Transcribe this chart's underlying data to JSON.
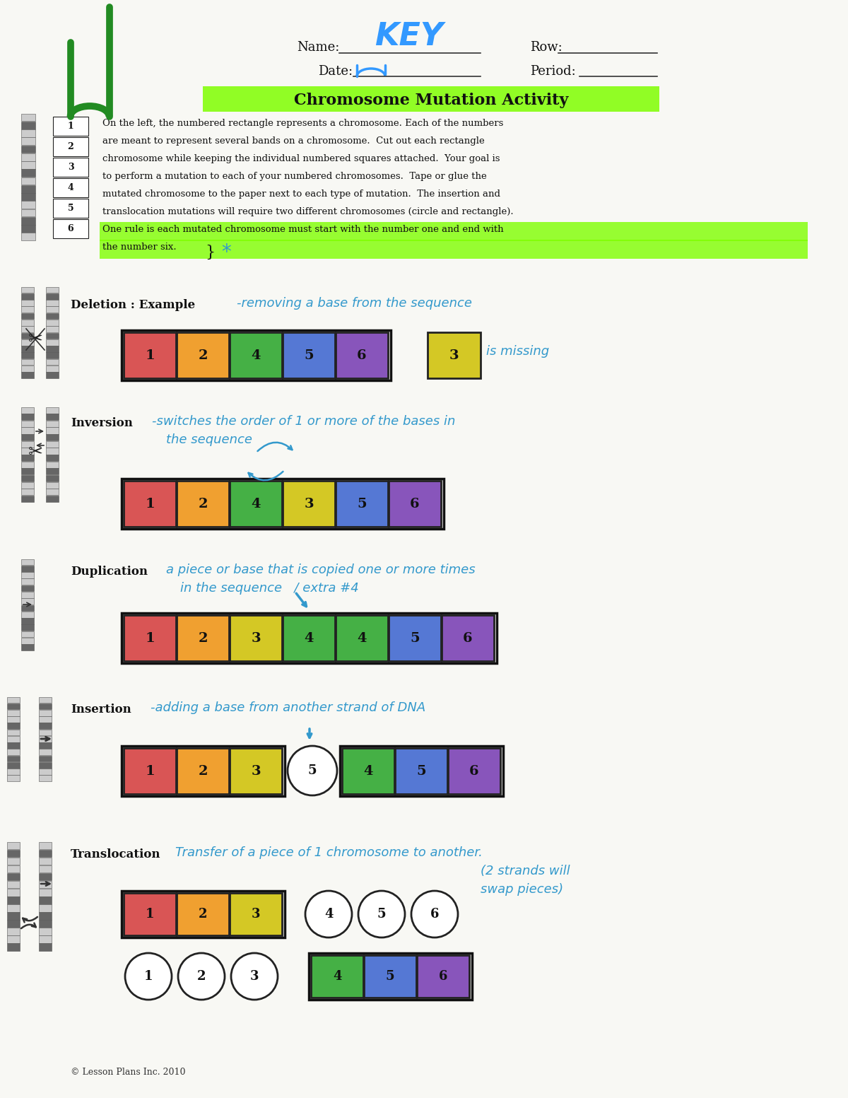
{
  "paper_color": "#f8f8f4",
  "title": "Chromosome Mutation Activity",
  "title_highlight": "#7FFF00",
  "header": {
    "name_label": "Name:",
    "name_value": "KEY",
    "row_label": "Row:",
    "date_label": "Date:",
    "period_label": "Period:"
  },
  "intro_text_lines": [
    "On the left, the numbered rectangle represents a chromosome. Each of the numbers",
    "are meant to represent several bands on a chromosome.  Cut out each rectangle",
    "chromosome while keeping the individual numbered squares attached.  Your goal is",
    "to perform a mutation to each of your numbered chromosomes.  Tape or glue the",
    "mutated chromosome to the paper next to each type of mutation.  The insertion and",
    "translocation mutations will require two different chromosomes (circle and rectangle).",
    "One rule is each mutated chromosome must start with the number one and end with",
    "the number six."
  ],
  "sections": [
    {
      "label": "Deletion : Example",
      "hw_note": "-removing a base from the sequence",
      "boxes": [
        {
          "n": "1",
          "c": "#d95555"
        },
        {
          "n": "2",
          "c": "#f0a030"
        },
        {
          "n": "4",
          "c": "#45b045"
        },
        {
          "n": "5",
          "c": "#5578d4"
        },
        {
          "n": "6",
          "c": "#8855bb"
        }
      ],
      "extra_box": {
        "n": "3",
        "c": "#d4c825"
      },
      "extra_note": "is missing"
    },
    {
      "label": "Inversion",
      "hw_note": "-switches the order of 1 or more of the bases in\nthe sequence",
      "boxes": [
        {
          "n": "1",
          "c": "#d95555"
        },
        {
          "n": "2",
          "c": "#f0a030"
        },
        {
          "n": "4",
          "c": "#45b045"
        },
        {
          "n": "3",
          "c": "#d4c825"
        },
        {
          "n": "5",
          "c": "#5578d4"
        },
        {
          "n": "6",
          "c": "#8855bb"
        }
      ]
    },
    {
      "label": "Duplication",
      "hw_note": "a piece or base that is copied one or more times\nin the sequence   / extra #4",
      "boxes": [
        {
          "n": "1",
          "c": "#d95555"
        },
        {
          "n": "2",
          "c": "#f0a030"
        },
        {
          "n": "3",
          "c": "#d4c825"
        },
        {
          "n": "4",
          "c": "#45b045"
        },
        {
          "n": "4",
          "c": "#45b045"
        },
        {
          "n": "5",
          "c": "#5578d4"
        },
        {
          "n": "6",
          "c": "#8855bb"
        }
      ]
    },
    {
      "label": "Insertion",
      "hw_note": "-adding a base from another strand of DNA",
      "left_boxes": [
        {
          "n": "1",
          "c": "#d95555"
        },
        {
          "n": "2",
          "c": "#f0a030"
        },
        {
          "n": "3",
          "c": "#d4c825"
        }
      ],
      "circle": "5",
      "right_boxes": [
        {
          "n": "4",
          "c": "#45b045"
        },
        {
          "n": "5",
          "c": "#5578d4"
        },
        {
          "n": "6",
          "c": "#8855bb"
        }
      ]
    },
    {
      "label": "Translocation",
      "hw_note": "Transfer of a piece of 1 chromosome to another.\n                          (2 strands will\n                          swap pieces)",
      "row1_rect": [
        {
          "n": "1",
          "c": "#d95555"
        },
        {
          "n": "2",
          "c": "#f0a030"
        },
        {
          "n": "3",
          "c": "#d4c825"
        }
      ],
      "row1_circles": [
        "4",
        "5",
        "6"
      ],
      "row2_circles": [
        "1",
        "2",
        "3"
      ],
      "row2_rect": [
        {
          "n": "4",
          "c": "#45b045"
        },
        {
          "n": "5",
          "c": "#5578d4"
        },
        {
          "n": "6",
          "c": "#8855bb"
        }
      ]
    }
  ],
  "copyright": "© Lesson Plans Inc. 2010"
}
